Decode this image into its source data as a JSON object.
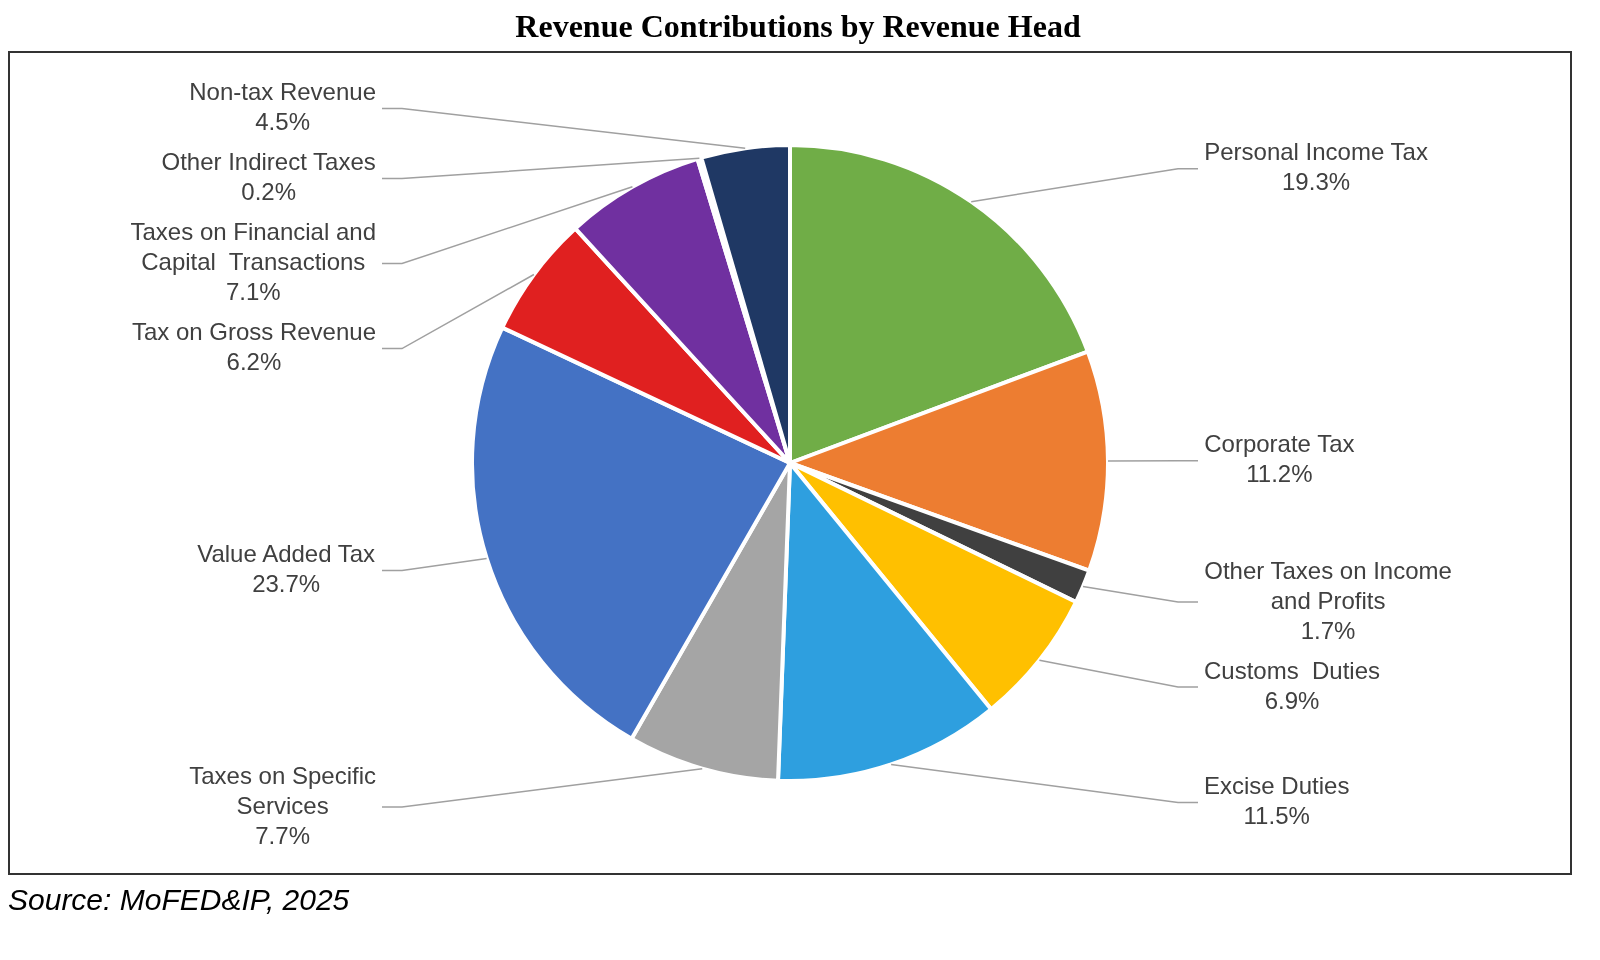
{
  "chart_data": {
    "type": "pie",
    "title": "Revenue Contributions by Revenue Head",
    "categories": [
      "Personal Income Tax",
      "Corporate Tax",
      "Other Taxes on Income and Profits",
      "Customs  Duties",
      "Excise Duties",
      "Taxes on Specific Services",
      "Value Added Tax",
      "Tax on Gross Revenue",
      "Taxes on Financial and Capital  Transactions",
      "Other Indirect Taxes",
      "Non-tax Revenue"
    ],
    "values": [
      19.3,
      11.2,
      1.7,
      6.9,
      11.5,
      7.7,
      23.7,
      6.2,
      7.1,
      0.2,
      4.5
    ],
    "value_labels": [
      "19.3%",
      "11.2%",
      "1.7%",
      "6.9%",
      "11.5%",
      "7.7%",
      "23.7%",
      "6.2%",
      "7.1%",
      "0.2%",
      "4.5%"
    ],
    "colors": [
      "#70ad47",
      "#ed7d31",
      "#404040",
      "#ffc000",
      "#2e9fdf",
      "#a5a5a5",
      "#4472c4",
      "#e02020",
      "#7030a0",
      "#9dc3e6",
      "#1f3864"
    ],
    "annotations": [
      "Source: MoFED&IP, 2025"
    ]
  }
}
